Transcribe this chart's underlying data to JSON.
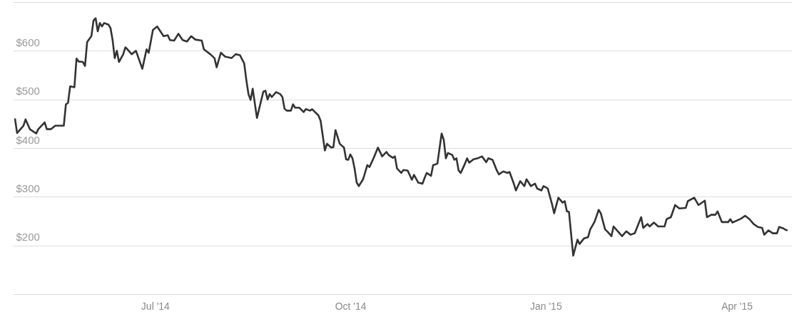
{
  "chart_data": {
    "type": "line",
    "x": [
      "2014-04-26",
      "2014-04-27",
      "2014-04-30",
      "2014-05-01",
      "2014-05-03",
      "2014-05-06",
      "2014-05-07",
      "2014-05-10",
      "2014-05-11",
      "2014-05-13",
      "2014-05-15",
      "2014-05-19",
      "2014-05-20",
      "2014-05-21",
      "2014-05-22",
      "2014-05-24",
      "2014-05-25",
      "2014-05-26",
      "2014-05-28",
      "2014-05-29",
      "2014-05-30",
      "2014-06-01",
      "2014-06-02",
      "2014-06-03",
      "2014-06-04",
      "2014-06-05",
      "2014-06-06",
      "2014-06-07",
      "2014-06-09",
      "2014-06-10",
      "2014-06-11",
      "2014-06-12",
      "2014-06-13",
      "2014-06-14",
      "2014-06-16",
      "2014-06-17",
      "2014-06-18",
      "2014-06-20",
      "2014-06-22",
      "2014-06-25",
      "2014-06-27",
      "2014-06-28",
      "2014-06-30",
      "2014-07-02",
      "2014-07-05",
      "2014-07-07",
      "2014-07-08",
      "2014-07-10",
      "2014-07-12",
      "2014-07-14",
      "2014-07-16",
      "2014-07-18",
      "2014-07-20",
      "2014-07-23",
      "2014-07-24",
      "2014-07-27",
      "2014-07-29",
      "2014-07-30",
      "2014-08-01",
      "2014-08-03",
      "2014-08-06",
      "2014-08-08",
      "2014-08-10",
      "2014-08-12",
      "2014-08-13",
      "2014-08-14",
      "2014-08-15",
      "2014-08-16",
      "2014-08-18",
      "2014-08-21",
      "2014-08-22",
      "2014-08-23",
      "2014-08-24",
      "2014-08-25",
      "2014-08-27",
      "2014-08-29",
      "2014-08-30",
      "2014-08-31",
      "2014-09-01",
      "2014-09-03",
      "2014-09-04",
      "2014-09-05",
      "2014-09-07",
      "2014-09-09",
      "2014-09-10",
      "2014-09-12",
      "2014-09-13",
      "2014-09-16",
      "2014-09-17",
      "2014-09-19",
      "2014-09-20",
      "2014-09-22",
      "2014-09-23",
      "2014-09-24",
      "2014-09-26",
      "2014-09-28",
      "2014-09-29",
      "2014-09-30",
      "2014-10-01",
      "2014-10-02",
      "2014-10-03",
      "2014-10-04",
      "2014-10-05",
      "2014-10-07",
      "2014-10-09",
      "2014-10-10",
      "2014-10-12",
      "2014-10-14",
      "2014-10-16",
      "2014-10-18",
      "2014-10-19",
      "2014-10-21",
      "2014-10-22",
      "2014-10-23",
      "2014-10-25",
      "2014-10-26",
      "2014-10-28",
      "2014-10-30",
      "2014-10-31",
      "2014-11-02",
      "2014-11-04",
      "2014-11-05",
      "2014-11-06",
      "2014-11-08",
      "2014-11-09",
      "2014-11-11",
      "2014-11-13",
      "2014-11-14",
      "2014-11-15",
      "2014-11-16",
      "2014-11-18",
      "2014-11-19",
      "2014-11-20",
      "2014-11-21",
      "2014-11-22",
      "2014-11-24",
      "2014-11-25",
      "2014-11-26",
      "2014-11-28",
      "2014-11-30",
      "2014-12-02",
      "2014-12-04",
      "2014-12-05",
      "2014-12-07",
      "2014-12-09",
      "2014-12-10",
      "2014-12-12",
      "2014-12-14",
      "2014-12-15",
      "2014-12-17",
      "2014-12-18",
      "2014-12-20",
      "2014-12-22",
      "2014-12-23",
      "2014-12-25",
      "2014-12-27",
      "2014-12-28",
      "2014-12-30",
      "2014-12-31",
      "2015-01-02",
      "2015-01-04",
      "2015-01-05",
      "2015-01-07",
      "2015-01-09",
      "2015-01-10",
      "2015-01-11",
      "2015-01-12",
      "2015-01-14",
      "2015-01-16",
      "2015-01-17",
      "2015-01-19",
      "2015-01-21",
      "2015-01-22",
      "2015-01-24",
      "2015-01-26",
      "2015-01-27",
      "2015-01-29",
      "2015-01-30",
      "2015-02-01",
      "2015-02-02",
      "2015-02-04",
      "2015-02-06",
      "2015-02-08",
      "2015-02-10",
      "2015-02-12",
      "2015-02-15",
      "2015-02-16",
      "2015-02-18",
      "2015-02-19",
      "2015-02-21",
      "2015-02-23",
      "2015-02-26",
      "2015-02-27",
      "2015-03-01",
      "2015-03-03",
      "2015-03-05",
      "2015-03-08",
      "2015-03-09",
      "2015-03-12",
      "2015-03-14",
      "2015-03-17",
      "2015-03-18",
      "2015-03-20",
      "2015-03-22",
      "2015-03-23",
      "2015-03-25",
      "2015-03-28",
      "2015-03-29",
      "2015-03-30",
      "2015-04-01",
      "2015-04-03",
      "2015-04-05",
      "2015-04-07",
      "2015-04-09",
      "2015-04-11",
      "2015-04-13",
      "2015-04-14",
      "2015-04-16",
      "2015-04-18",
      "2015-04-20",
      "2015-04-21",
      "2015-04-23",
      "2015-04-24",
      "2015-04-25"
    ],
    "series": [
      {
        "color": "#333333",
        "values": [
          461,
          431,
          446,
          459,
          439,
          430,
          439,
          453,
          439,
          439,
          446,
          446,
          490,
          493,
          527,
          525,
          584,
          578,
          577,
          569,
          618,
          630,
          662,
          667,
          640,
          657,
          650,
          657,
          654,
          647,
          622,
          585,
          600,
          577,
          593,
          607,
          603,
          593,
          600,
          563,
          603,
          596,
          643,
          650,
          630,
          632,
          622,
          621,
          635,
          622,
          619,
          630,
          623,
          621,
          603,
          593,
          585,
          566,
          596,
          588,
          585,
          593,
          591,
          574,
          540,
          511,
          499,
          522,
          462,
          516,
          518,
          500,
          511,
          505,
          515,
          511,
          505,
          481,
          477,
          477,
          490,
          483,
          483,
          474,
          480,
          477,
          480,
          467,
          456,
          395,
          409,
          401,
          402,
          437,
          409,
          401,
          377,
          376,
          387,
          379,
          358,
          329,
          322,
          336,
          365,
          361,
          380,
          401,
          383,
          392,
          386,
          380,
          383,
          358,
          349,
          355,
          354,
          335,
          345,
          329,
          327,
          339,
          349,
          343,
          365,
          368,
          430,
          417,
          379,
          390,
          386,
          376,
          379,
          354,
          349,
          368,
          379,
          370,
          377,
          379,
          383,
          371,
          379,
          376,
          354,
          346,
          352,
          349,
          351,
          327,
          313,
          332,
          322,
          336,
          322,
          327,
          317,
          313,
          322,
          317,
          285,
          266,
          298,
          288,
          291,
          270,
          269,
          179,
          212,
          203,
          214,
          217,
          233,
          248,
          273,
          266,
          233,
          229,
          219,
          239,
          229,
          219,
          229,
          222,
          225,
          258,
          236,
          244,
          239,
          247,
          239,
          239,
          254,
          258,
          283,
          276,
          277,
          291,
          298,
          283,
          292,
          258,
          263,
          263,
          270,
          248,
          248,
          254,
          247,
          251,
          255,
          261,
          254,
          244,
          238,
          236,
          222,
          231,
          225,
          225,
          238,
          235,
          232,
          231
        ]
      }
    ],
    "xlim": [
      "2014-04-25",
      "2015-04-27"
    ],
    "xticks": [
      {
        "value": "2014-07-01",
        "label": "Jul '14"
      },
      {
        "value": "2014-10-01",
        "label": "Oct '14"
      },
      {
        "value": "2015-01-01",
        "label": "Jan '15"
      },
      {
        "value": "2015-04-01",
        "label": "Apr '15"
      }
    ],
    "ylim": [
      100,
      700
    ],
    "yticks": [
      {
        "value": 100,
        "label": null
      },
      {
        "value": 200,
        "label": "$200"
      },
      {
        "value": 300,
        "label": "$300"
      },
      {
        "value": 400,
        "label": "$400"
      },
      {
        "value": 500,
        "label": "$500"
      },
      {
        "value": 600,
        "label": "$600"
      },
      {
        "value": 700,
        "label": null
      }
    ],
    "grid": "y",
    "line_style": "solid",
    "marker": "none"
  }
}
